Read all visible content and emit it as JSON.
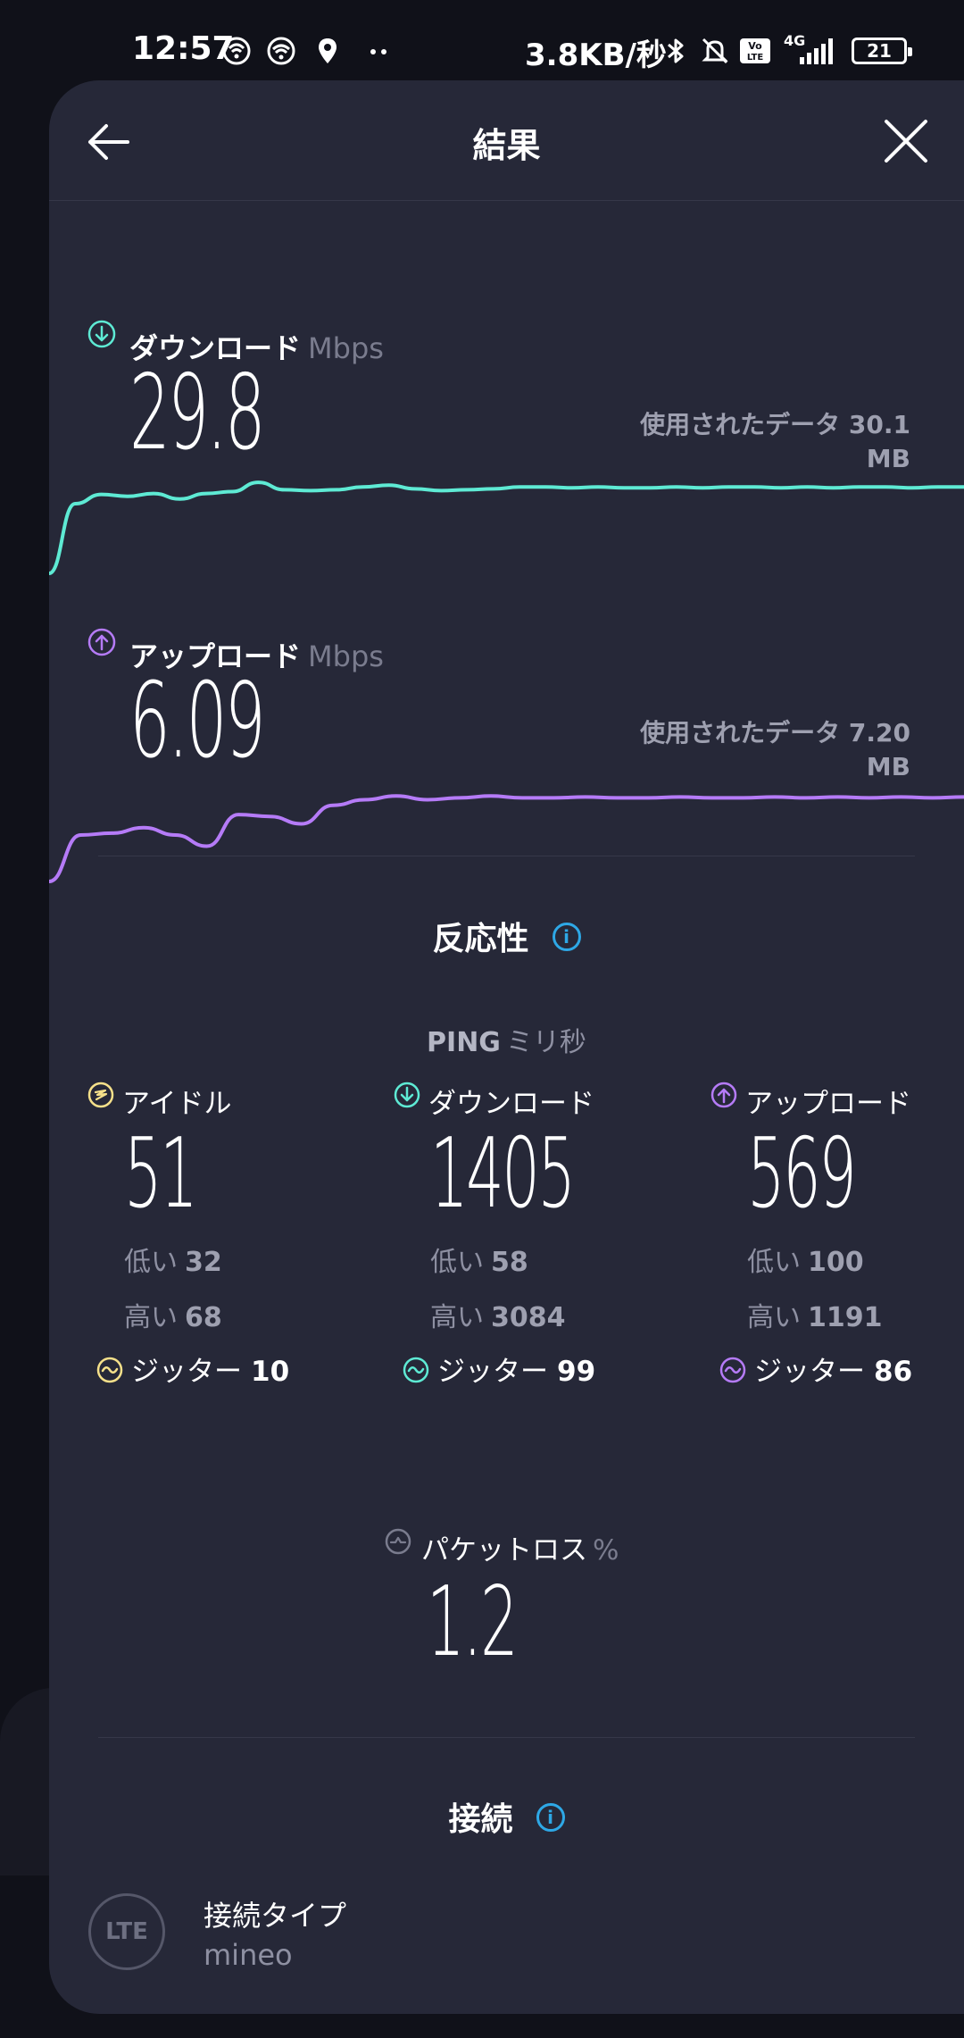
{
  "status_bar": {
    "time": "12:57",
    "network_speed": "3.8KB/秒",
    "battery": "21",
    "network_type": "4G",
    "volte_label": "Vo LTE",
    "icons": [
      "hotspot-icon",
      "wifi-icon",
      "location-icon",
      "more-dots-icon",
      "bluetooth-icon",
      "bell-off-icon",
      "volte-icon",
      "signal-icon",
      "battery-icon"
    ]
  },
  "header": {
    "title": "結果",
    "back_icon": "arrow-left-icon",
    "close_icon": "close-icon"
  },
  "download": {
    "label": "ダウンロード",
    "unit": "Mbps",
    "value": "29.8",
    "data_used": "使用されたデータ 30.1 MB",
    "color": "#5eead4",
    "icon": "download-arrow-icon",
    "graph": [
      0.0,
      0.75,
      0.85,
      0.83,
      0.86,
      0.8,
      0.86,
      0.88,
      0.98,
      0.9,
      0.89,
      0.9,
      0.93,
      0.95,
      0.91,
      0.89,
      0.9,
      0.91,
      0.93,
      0.93,
      0.92,
      0.93,
      0.92,
      0.92,
      0.93,
      0.92,
      0.93,
      0.93,
      0.92,
      0.93,
      0.92,
      0.93,
      0.93,
      0.92,
      0.93,
      0.93
    ]
  },
  "upload": {
    "label": "アップロード",
    "unit": "Mbps",
    "value": "6.09",
    "data_used": "使用されたデータ 7.20 MB",
    "color": "#b57bf7",
    "icon": "upload-arrow-icon",
    "graph": [
      0.0,
      0.5,
      0.52,
      0.58,
      0.5,
      0.38,
      0.72,
      0.7,
      0.62,
      0.82,
      0.88,
      0.92,
      0.88,
      0.9,
      0.92,
      0.9,
      0.9,
      0.91,
      0.9,
      0.9,
      0.91,
      0.9,
      0.9,
      0.91,
      0.9,
      0.91,
      0.9,
      0.91,
      0.9,
      0.91
    ]
  },
  "responsiveness": {
    "title": "反応性",
    "info_icon": "info-icon",
    "ping_label": "PING",
    "ping_unit": "ミリ秒",
    "low_label": "低い",
    "high_label": "高い",
    "jitter_label": "ジッター",
    "columns": [
      {
        "label": "アイドル",
        "value": "51",
        "low": "32",
        "high": "68",
        "jitter": "10",
        "color": "#f5e08a",
        "icon": "idle-icon"
      },
      {
        "label": "ダウンロード",
        "value": "1405",
        "low": "58",
        "high": "3084",
        "jitter": "99",
        "color": "#5eead4",
        "icon": "download-arrow-icon"
      },
      {
        "label": "アップロード",
        "value": "569",
        "low": "100",
        "high": "1191",
        "jitter": "86",
        "color": "#b57bf7",
        "icon": "upload-arrow-icon"
      }
    ]
  },
  "packet_loss": {
    "label": "パケットロス",
    "unit": "%",
    "value": "1.2",
    "icon": "packet-loss-icon"
  },
  "connection": {
    "title": "接続",
    "info_icon": "info-icon",
    "badge": "LTE",
    "type_label": "接続タイプ",
    "type_value": "mineo"
  }
}
